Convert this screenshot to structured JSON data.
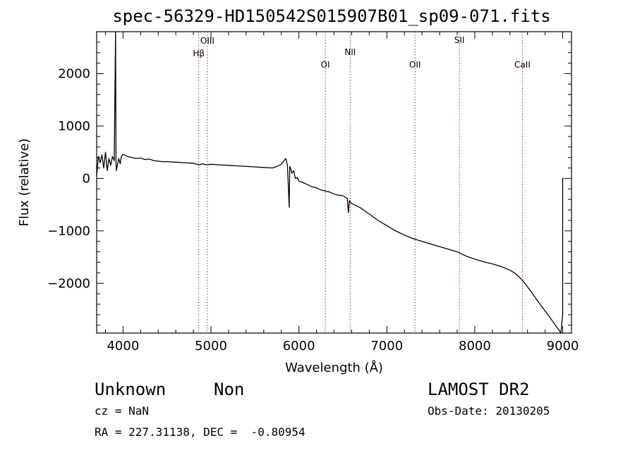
{
  "chart_data": {
    "type": "line",
    "title": "spec-56329-HD150542S015907B01_sp09-071.fits",
    "xlabel": "Wavelength (Å)",
    "ylabel": "Flux (relative)",
    "xlim": [
      3700,
      9100
    ],
    "ylim": [
      -2950,
      2800
    ],
    "xticks": [
      4000,
      5000,
      6000,
      7000,
      8000,
      9000
    ],
    "yticks": [
      -2000,
      -1000,
      0,
      1000,
      2000
    ],
    "grid": false,
    "lines": [
      {
        "label": "Hβ",
        "wavelength": 4861
      },
      {
        "label": "OIII",
        "wavelength": 4959
      },
      {
        "label": "OI",
        "wavelength": 6300
      },
      {
        "label": "NII",
        "wavelength": 6583
      },
      {
        "label": "OII",
        "wavelength": 7320
      },
      {
        "label": "SII",
        "wavelength": 7825
      },
      {
        "label": "CaII",
        "wavelength": 8542
      }
    ],
    "series": [
      {
        "x": [
          3700,
          3720,
          3740,
          3760,
          3780,
          3800,
          3820,
          3840,
          3860,
          3880,
          3900,
          3915,
          3920,
          3925,
          3935,
          3950,
          3968,
          3980,
          4000,
          4050,
          4100,
          4150,
          4200,
          4250,
          4300,
          4350,
          4400,
          4450,
          4500,
          4600,
          4700,
          4800,
          4861,
          4900,
          4950,
          5000,
          5100,
          5200,
          5300,
          5400,
          5500,
          5600,
          5700,
          5750,
          5800,
          5850,
          5870,
          5890,
          5896,
          5905,
          5920,
          5940,
          5960,
          5980,
          6000,
          6050,
          6100,
          6150,
          6200,
          6250,
          6300,
          6350,
          6400,
          6450,
          6500,
          6550,
          6563,
          6575,
          6600,
          6650,
          6700,
          6800,
          6900,
          7000,
          7100,
          7200,
          7300,
          7400,
          7500,
          7600,
          7700,
          7800,
          7900,
          8000,
          8100,
          8200,
          8300,
          8400,
          8450,
          8500,
          8550,
          8600,
          8650,
          8700,
          8750,
          8800,
          8850,
          8900,
          8950,
          8980,
          9000,
          9000,
          9005,
          9010
        ],
        "y": [
          50,
          420,
          300,
          450,
          200,
          500,
          150,
          380,
          250,
          420,
          340,
          2800,
          300,
          150,
          250,
          380,
          280,
          420,
          460,
          420,
          400,
          380,
          390,
          360,
          370,
          340,
          330,
          320,
          320,
          310,
          300,
          290,
          260,
          280,
          260,
          270,
          260,
          250,
          240,
          230,
          220,
          210,
          200,
          230,
          270,
          380,
          250,
          -550,
          230,
          200,
          100,
          150,
          0,
          20,
          -50,
          -80,
          -120,
          -160,
          -180,
          -220,
          -240,
          -260,
          -300,
          -320,
          -330,
          -380,
          -650,
          -420,
          -480,
          -520,
          -560,
          -680,
          -800,
          -900,
          -1000,
          -1080,
          -1150,
          -1200,
          -1250,
          -1300,
          -1350,
          -1400,
          -1480,
          -1540,
          -1590,
          -1630,
          -1680,
          -1750,
          -1800,
          -1870,
          -1960,
          -2070,
          -2180,
          -2300,
          -2420,
          -2530,
          -2640,
          -2760,
          -2880,
          -2950,
          -2600,
          0,
          0,
          0
        ]
      }
    ]
  },
  "footer": {
    "object_class": "Unknown",
    "subclass": "Non",
    "survey": "LAMOST DR2",
    "cz": "cz = NaN",
    "obs_date": "Obs-Date: 20130205",
    "coords": "RA = 227.31138, DEC =  -0.80954"
  }
}
